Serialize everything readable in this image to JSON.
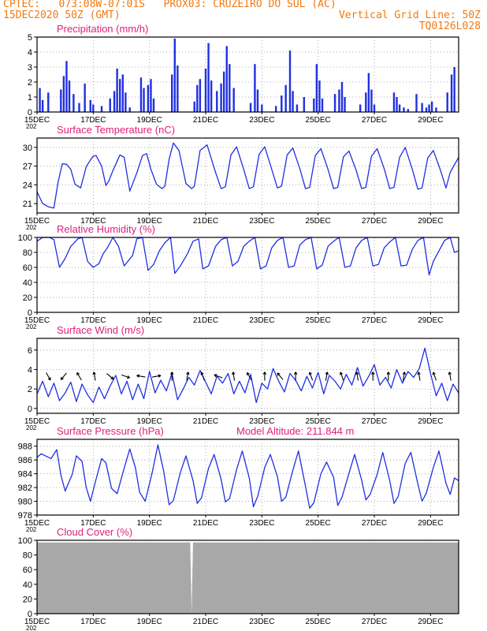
{
  "header": {
    "line1": "CPTEC:   073:08W-07:01S   PROX03: CRUZEIRO DO SUL (AC)",
    "line2_left": "15DEC2020 50Z (GMT)",
    "line2_right": "Vertical Grid Line: 50Z",
    "line3_right": "TQ0126L028"
  },
  "colors": {
    "header": "#f07a12",
    "title": "#e0207a",
    "line": "#2030e0",
    "cloud": "#a8a8a8",
    "grid": "#999999"
  },
  "x_axis": {
    "days": [
      15,
      30
    ],
    "tick_labels": [
      "15DEC",
      "17DEC",
      "19DEC",
      "21DEC",
      "23DEC",
      "25DEC",
      "27DEC",
      "29DEC"
    ],
    "tick_days": [
      15,
      17,
      19,
      21,
      23,
      25,
      27,
      29
    ],
    "year_stub": "202"
  },
  "chart_data": [
    {
      "type": "bar",
      "title": "Precipitation (mm/h)",
      "ylim": [
        0,
        5
      ],
      "yticks": [
        "0",
        "1",
        "2",
        "3",
        "4",
        "5"
      ],
      "grid": true,
      "x_days": [
        15.1,
        15.2,
        15.4,
        15.85,
        15.95,
        16.05,
        16.15,
        16.3,
        16.5,
        16.7,
        16.9,
        17.0,
        17.3,
        17.6,
        17.75,
        17.85,
        17.95,
        18.05,
        18.15,
        18.3,
        18.7,
        18.8,
        18.95,
        19.05,
        19.15,
        19.8,
        19.9,
        20.0,
        20.6,
        20.7,
        20.8,
        21.0,
        21.1,
        21.2,
        21.4,
        21.55,
        21.65,
        21.75,
        21.85,
        22.0,
        22.6,
        22.75,
        22.85,
        23.0,
        23.5,
        23.7,
        23.85,
        24.0,
        24.1,
        24.25,
        24.5,
        24.85,
        24.95,
        25.05,
        25.15,
        25.6,
        25.75,
        25.85,
        25.95,
        26.5,
        26.7,
        26.8,
        26.9,
        27.0,
        27.7,
        27.8,
        27.9,
        28.05,
        28.2,
        28.5,
        28.7,
        28.85,
        28.95,
        29.05,
        29.2,
        29.6,
        29.75,
        29.85
      ],
      "values": [
        1.6,
        0.8,
        1.3,
        1.5,
        2.4,
        3.4,
        2.1,
        1.2,
        0.6,
        1.9,
        0.8,
        0.5,
        0.4,
        0.9,
        1.4,
        2.9,
        2.2,
        2.5,
        1.3,
        0.3,
        2.3,
        1.6,
        1.8,
        2.2,
        0.9,
        2.5,
        4.9,
        3.1,
        0.7,
        1.8,
        2.2,
        2.9,
        4.6,
        2.1,
        1.4,
        1.9,
        2.7,
        4.4,
        3.2,
        1.6,
        0.6,
        3.2,
        1.5,
        0.5,
        0.4,
        1.1,
        1.8,
        4.1,
        1.4,
        0.5,
        1.0,
        0.9,
        3.2,
        2.1,
        0.9,
        1.2,
        1.5,
        2.0,
        1.0,
        0.5,
        1.3,
        2.6,
        1.5,
        0.5,
        1.3,
        1.0,
        0.5,
        0.3,
        0.2,
        1.2,
        0.6,
        0.3,
        0.5,
        0.7,
        0.3,
        1.3,
        2.5,
        3.0
      ]
    },
    {
      "type": "line",
      "title": "Surface Temperature (nC)",
      "ylim": [
        19.5,
        31.5
      ],
      "yticks": [
        "21",
        "24",
        "27",
        "30"
      ],
      "ytick_values": [
        21,
        24,
        27,
        30
      ],
      "grid": true,
      "x": [
        15.0,
        15.2,
        15.4,
        15.6,
        15.75,
        15.9,
        16.05,
        16.2,
        16.35,
        16.55,
        16.75,
        16.9,
        17.0,
        17.1,
        17.3,
        17.45,
        17.55,
        17.7,
        17.85,
        17.95,
        18.1,
        18.3,
        18.55,
        18.75,
        18.9,
        19.05,
        19.25,
        19.45,
        19.55,
        19.7,
        19.85,
        20.05,
        20.3,
        20.5,
        20.6,
        20.8,
        21.05,
        21.35,
        21.55,
        21.7,
        21.9,
        22.1,
        22.35,
        22.55,
        22.7,
        22.9,
        23.1,
        23.35,
        23.55,
        23.7,
        23.9,
        24.1,
        24.35,
        24.55,
        24.7,
        24.9,
        25.1,
        25.35,
        25.55,
        25.7,
        25.9,
        26.1,
        26.35,
        26.55,
        26.7,
        26.9,
        27.1,
        27.35,
        27.55,
        27.7,
        27.9,
        28.1,
        28.35,
        28.55,
        28.7,
        28.9,
        29.1,
        29.35,
        29.55,
        29.7,
        30.0
      ],
      "values": [
        22.9,
        21.0,
        20.5,
        20.3,
        24.5,
        27.4,
        27.3,
        26.5,
        24.1,
        23.5,
        26.9,
        28.0,
        28.6,
        28.7,
        27.0,
        23.9,
        24.6,
        26.3,
        27.8,
        28.8,
        28.4,
        23.0,
        25.9,
        28.7,
        29.0,
        26.5,
        24.1,
        23.4,
        23.8,
        28.1,
        30.7,
        29.5,
        24.2,
        23.4,
        23.8,
        29.5,
        30.4,
        26.0,
        23.4,
        23.7,
        28.8,
        30.1,
        26.5,
        23.4,
        23.7,
        28.9,
        30.1,
        26.5,
        23.5,
        23.8,
        28.8,
        29.9,
        26.6,
        23.4,
        23.6,
        28.7,
        29.8,
        26.5,
        23.4,
        23.6,
        28.5,
        29.4,
        26.4,
        23.4,
        23.6,
        28.6,
        29.8,
        26.6,
        23.4,
        23.6,
        28.4,
        30.0,
        26.5,
        23.3,
        23.5,
        28.3,
        29.5,
        26.4,
        23.5,
        26.0,
        28.4
      ]
    },
    {
      "type": "line",
      "title": "Relative Humidity (%)",
      "ylim": [
        0,
        100
      ],
      "yticks": [
        "0",
        "20",
        "40",
        "60",
        "80",
        "100"
      ],
      "ytick_values": [
        0,
        20,
        40,
        60,
        80,
        100
      ],
      "grid": true,
      "x": [
        15.0,
        15.2,
        15.45,
        15.6,
        15.8,
        16.0,
        16.2,
        16.45,
        16.6,
        16.8,
        17.0,
        17.2,
        17.35,
        17.5,
        17.7,
        17.9,
        18.1,
        18.4,
        18.55,
        18.75,
        18.95,
        19.15,
        19.35,
        19.55,
        19.75,
        19.9,
        20.1,
        20.35,
        20.55,
        20.75,
        20.9,
        21.1,
        21.35,
        21.55,
        21.75,
        21.95,
        22.15,
        22.35,
        22.55,
        22.75,
        22.95,
        23.15,
        23.35,
        23.55,
        23.75,
        23.95,
        24.15,
        24.35,
        24.55,
        24.75,
        24.95,
        25.15,
        25.35,
        25.55,
        25.75,
        25.95,
        26.15,
        26.35,
        26.55,
        26.75,
        26.95,
        27.15,
        27.35,
        27.55,
        27.75,
        27.95,
        28.15,
        28.35,
        28.55,
        28.75,
        28.95,
        29.1,
        29.3,
        29.5,
        29.7,
        29.85,
        30.0
      ],
      "values": [
        95,
        100,
        100,
        97,
        60,
        72,
        88,
        98,
        100,
        68,
        60,
        65,
        78,
        86,
        100,
        88,
        62,
        76,
        98,
        100,
        56,
        64,
        82,
        93,
        100,
        52,
        62,
        78,
        95,
        98,
        58,
        62,
        88,
        97,
        100,
        62,
        68,
        88,
        95,
        100,
        58,
        62,
        86,
        96,
        100,
        60,
        62,
        90,
        97,
        100,
        58,
        63,
        88,
        95,
        100,
        60,
        62,
        86,
        96,
        100,
        62,
        64,
        86,
        94,
        100,
        62,
        63,
        84,
        96,
        100,
        50,
        68,
        82,
        96,
        100,
        80,
        82
      ]
    },
    {
      "type": "line",
      "title": "Surface Wind (m/s)",
      "ylim": [
        -0.5,
        7.2
      ],
      "yticks": [
        "0",
        "2",
        "4",
        "6"
      ],
      "ytick_values": [
        0,
        2,
        4,
        6
      ],
      "grid": true,
      "x": [
        15.0,
        15.2,
        15.4,
        15.6,
        15.8,
        16.0,
        16.2,
        16.4,
        16.6,
        16.8,
        17.0,
        17.2,
        17.4,
        17.6,
        17.8,
        18.0,
        18.2,
        18.4,
        18.6,
        18.8,
        19.0,
        19.2,
        19.4,
        19.6,
        19.8,
        20.0,
        20.2,
        20.4,
        20.6,
        20.8,
        21.0,
        21.2,
        21.4,
        21.6,
        21.8,
        22.0,
        22.2,
        22.4,
        22.6,
        22.8,
        23.0,
        23.2,
        23.4,
        23.6,
        23.8,
        24.0,
        24.2,
        24.4,
        24.6,
        24.8,
        25.0,
        25.2,
        25.4,
        25.6,
        25.8,
        26.0,
        26.2,
        26.4,
        26.6,
        26.8,
        27.0,
        27.2,
        27.4,
        27.6,
        27.8,
        28.0,
        28.2,
        28.4,
        28.6,
        28.8,
        29.0,
        29.2,
        29.4,
        29.6,
        29.8,
        30.0
      ],
      "values": [
        1.5,
        2.8,
        1.2,
        2.6,
        0.8,
        1.6,
        2.7,
        0.7,
        2.5,
        1.4,
        0.6,
        2.2,
        1.0,
        2.3,
        3.4,
        1.5,
        2.8,
        0.9,
        2.5,
        1.0,
        3.8,
        1.6,
        2.9,
        1.8,
        3.6,
        0.9,
        2.0,
        3.2,
        2.4,
        3.9,
        2.7,
        1.5,
        3.3,
        2.6,
        3.6,
        1.5,
        2.8,
        1.6,
        3.5,
        0.6,
        2.6,
        2.0,
        4.1,
        2.8,
        1.7,
        3.6,
        2.9,
        1.8,
        3.3,
        2.1,
        3.7,
        1.5,
        3.4,
        2.8,
        2.0,
        3.5,
        2.4,
        4.2,
        2.3,
        3.3,
        4.5,
        2.4,
        3.2,
        2.1,
        4.0,
        2.6,
        3.8,
        3.2,
        4.1,
        6.2,
        3.6,
        1.3,
        2.6,
        0.8,
        2.5,
        1.6
      ],
      "arrow_days": [
        15.4,
        15.95,
        16.5,
        17.05,
        17.6,
        18.15,
        18.7,
        19.25,
        19.8,
        20.35,
        20.9,
        21.45,
        22.0,
        22.55,
        23.1,
        23.65,
        24.2,
        24.75,
        25.3,
        25.85,
        26.4,
        26.95,
        27.5,
        28.05,
        28.6,
        29.15,
        29.7
      ],
      "arrow_angles_deg": [
        -60,
        -130,
        120,
        100,
        -40,
        -20,
        170,
        10,
        90,
        80,
        110,
        160,
        100,
        120,
        90,
        130,
        90,
        110,
        80,
        110,
        100,
        90,
        90,
        80,
        100,
        110,
        100
      ]
    },
    {
      "type": "line",
      "title": "Surface Pressure (hPa)",
      "ylim": [
        978,
        989
      ],
      "yticks": [
        "978",
        "980",
        "982",
        "984",
        "986",
        "988"
      ],
      "ytick_values": [
        978,
        980,
        982,
        984,
        986,
        988
      ],
      "grid": true,
      "x": [
        15.0,
        15.15,
        15.3,
        15.5,
        15.7,
        15.85,
        16.0,
        16.25,
        16.4,
        16.6,
        16.75,
        16.9,
        17.1,
        17.3,
        17.45,
        17.65,
        17.85,
        18.05,
        18.3,
        18.5,
        18.65,
        18.85,
        19.1,
        19.3,
        19.5,
        19.7,
        19.85,
        20.1,
        20.3,
        20.55,
        20.7,
        20.85,
        21.1,
        21.3,
        21.55,
        21.7,
        21.85,
        22.1,
        22.3,
        22.55,
        22.7,
        22.85,
        23.1,
        23.3,
        23.55,
        23.7,
        23.85,
        24.1,
        24.3,
        24.55,
        24.7,
        24.85,
        25.1,
        25.3,
        25.55,
        25.7,
        25.85,
        26.1,
        26.3,
        26.55,
        26.7,
        26.85,
        27.1,
        27.3,
        27.55,
        27.7,
        27.85,
        28.1,
        28.3,
        28.55,
        28.7,
        28.85,
        29.1,
        29.3,
        29.55,
        29.7,
        29.85,
        30.0
      ],
      "values": [
        986.4,
        986.9,
        986.6,
        986.2,
        987.5,
        983.8,
        981.5,
        983.9,
        986.6,
        985.8,
        982.0,
        980.0,
        983.2,
        986.2,
        985.6,
        981.9,
        981.1,
        984.1,
        987.6,
        984.9,
        981.3,
        980.0,
        984.2,
        988.2,
        984.5,
        979.5,
        980.1,
        984.2,
        986.6,
        983.0,
        979.7,
        980.5,
        984.8,
        986.8,
        983.2,
        979.9,
        980.4,
        984.6,
        987.3,
        983.4,
        979.2,
        980.7,
        984.9,
        986.8,
        983.6,
        980.0,
        980.6,
        984.5,
        987.3,
        982.2,
        979.0,
        979.8,
        984.0,
        985.7,
        983.5,
        979.4,
        980.6,
        984.1,
        986.8,
        983.1,
        980.2,
        981.0,
        983.9,
        987.1,
        983.0,
        979.7,
        980.7,
        985.5,
        987.1,
        982.5,
        980.0,
        981.2,
        984.9,
        987.3,
        982.6,
        981.0,
        983.4,
        983.0
      ]
    },
    {
      "type": "area",
      "title": "Cloud Cover (%)",
      "ylim": [
        0,
        100
      ],
      "yticks": [
        "0",
        "20",
        "40",
        "60",
        "80",
        "100"
      ],
      "ytick_values": [
        0,
        20,
        40,
        60,
        80,
        100
      ],
      "grid": true,
      "x": [
        15.0,
        20.45,
        20.5,
        20.55,
        30.0
      ],
      "values": [
        97,
        97,
        0,
        97,
        97
      ]
    }
  ],
  "annotations": {
    "model_altitude": "Model Altitude: 211.844 m"
  }
}
